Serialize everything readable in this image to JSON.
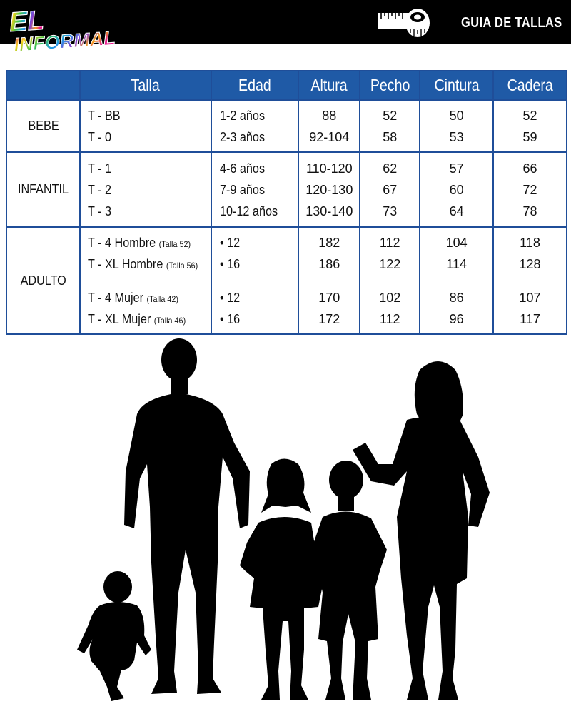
{
  "brand": {
    "logo_line1": "EL",
    "logo_line2": "INFORMAL"
  },
  "header": {
    "title": "GUIA DE TALLAS",
    "icon": "measuring-tape-icon"
  },
  "colors": {
    "header_bar": "#000000",
    "table_header": "#1f5aa6",
    "table_border": "#1f4e99",
    "silhouette": "#000000"
  },
  "table": {
    "columns": [
      "Talla",
      "Edad",
      "Altura",
      "Pecho",
      "Cintura",
      "Cadera"
    ],
    "groups": [
      {
        "category": "BEBE",
        "rows": [
          {
            "talla": "T - BB",
            "talla_note": "",
            "edad": "1-2 años",
            "altura": "88",
            "pecho": "52",
            "cintura": "50",
            "cadera": "52"
          },
          {
            "talla": "T - 0",
            "talla_note": "",
            "edad": "2-3 años",
            "altura": "92-104",
            "pecho": "58",
            "cintura": "53",
            "cadera": "59"
          }
        ]
      },
      {
        "category": "INFANTIL",
        "rows": [
          {
            "talla": "T - 1",
            "talla_note": "",
            "edad": "4-6 años",
            "altura": "110-120",
            "pecho": "62",
            "cintura": "57",
            "cadera": "66"
          },
          {
            "talla": "T - 2",
            "talla_note": "",
            "edad": "7-9 años",
            "altura": "120-130",
            "pecho": "67",
            "cintura": "60",
            "cadera": "72"
          },
          {
            "talla": "T - 3",
            "talla_note": "",
            "edad": "10-12 años",
            "altura": "130-140",
            "pecho": "73",
            "cintura": "64",
            "cadera": "78"
          }
        ]
      },
      {
        "category": "ADULTO",
        "rows": [
          {
            "talla": "T - 4 Hombre",
            "talla_note": "(Talla 52)",
            "edad": "• 12",
            "altura": "182",
            "pecho": "112",
            "cintura": "104",
            "cadera": "118"
          },
          {
            "talla": "T - XL Hombre",
            "talla_note": "(Talla 56)",
            "edad": "• 16",
            "altura": "186",
            "pecho": "122",
            "cintura": "114",
            "cadera": "128"
          },
          {
            "talla": "T - 4 Mujer",
            "talla_note": "(Talla 42)",
            "edad": "• 12",
            "altura": "170",
            "pecho": "102",
            "cintura": "86",
            "cadera": "107"
          },
          {
            "talla": "T - XL Mujer",
            "talla_note": "(Talla 46)",
            "edad": "• 16",
            "altura": "172",
            "pecho": "112",
            "cintura": "96",
            "cadera": "117"
          }
        ]
      }
    ]
  },
  "illustration": {
    "figures": [
      "baby-silhouette",
      "man-silhouette",
      "girl-silhouette",
      "boy-silhouette",
      "woman-silhouette"
    ]
  }
}
